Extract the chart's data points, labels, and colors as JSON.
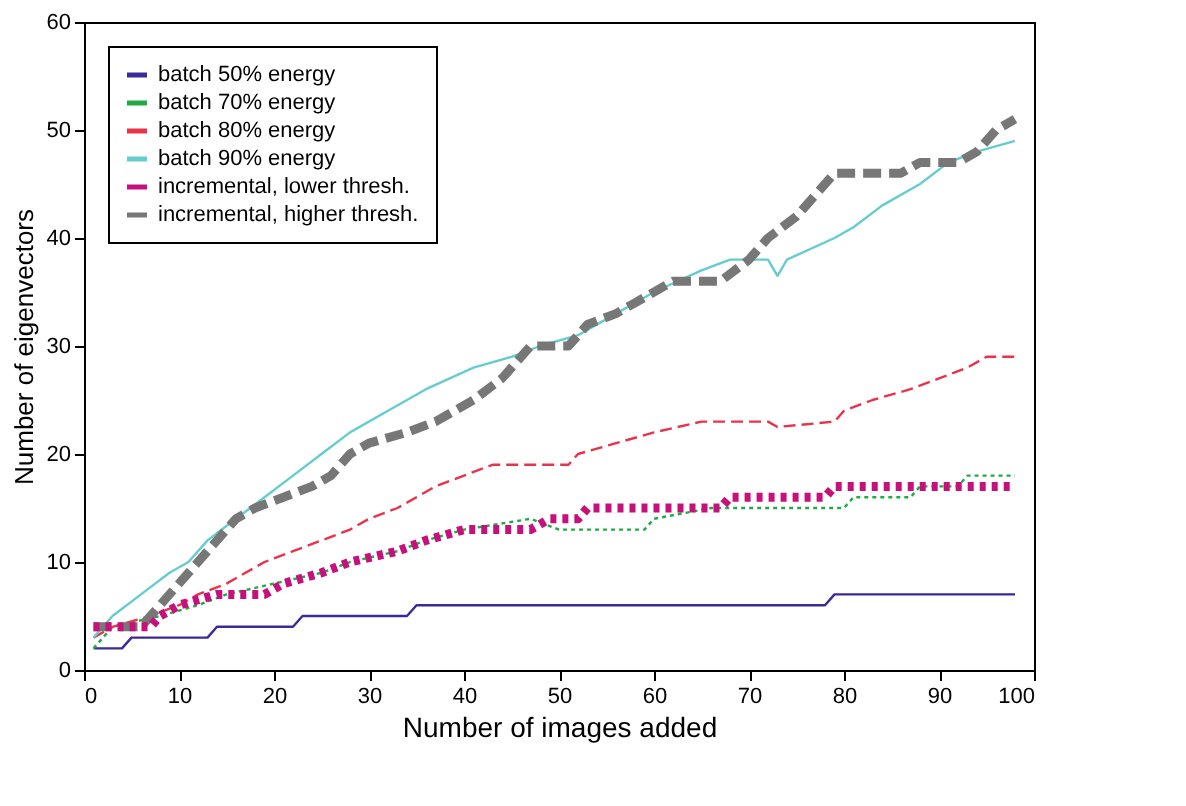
{
  "chart_data": {
    "type": "line",
    "xlabel": "Number of images added",
    "ylabel": "Number of eigenvectors",
    "xlim": [
      0,
      100
    ],
    "ylim": [
      0,
      60
    ],
    "xticks": [
      0,
      10,
      20,
      30,
      40,
      50,
      60,
      70,
      80,
      90,
      100
    ],
    "yticks": [
      0,
      10,
      20,
      30,
      40,
      50,
      60
    ],
    "grid": false,
    "legend": "top left",
    "series": [
      {
        "name": "batch 50% energy",
        "color": "#3a2a9a",
        "line_style": "solid",
        "x": [
          1,
          4,
          5,
          13,
          14,
          22,
          23,
          34,
          35,
          78,
          79,
          98
        ],
        "values": [
          2,
          2,
          3,
          3,
          4,
          4,
          5,
          5,
          6,
          6,
          7,
          7
        ]
      },
      {
        "name": "batch 70% energy",
        "color": "#22aa44",
        "line_style": "dotted",
        "x": [
          1,
          3,
          8,
          12,
          15,
          20,
          25,
          28,
          33,
          36,
          40,
          47,
          50,
          52,
          59,
          60,
          66,
          80,
          81,
          87,
          88,
          92,
          93,
          98
        ],
        "values": [
          2,
          4,
          5,
          6,
          7,
          8,
          9,
          10,
          11,
          12,
          13,
          14,
          13,
          13,
          13,
          14,
          15,
          15,
          16,
          16,
          17,
          17,
          18,
          18
        ]
      },
      {
        "name": "batch 80% energy",
        "color": "#e8334a",
        "line_style": "dashed",
        "x": [
          1,
          3,
          7,
          10,
          12,
          15,
          17,
          19,
          22,
          25,
          28,
          30,
          33,
          35,
          37,
          40,
          43,
          51,
          52,
          56,
          60,
          65,
          72,
          73,
          79,
          80,
          83,
          87,
          90,
          93,
          95,
          98
        ],
        "values": [
          3,
          4,
          5,
          6,
          7,
          8,
          9,
          10,
          11,
          12,
          13,
          14,
          15,
          16,
          17,
          18,
          19,
          19,
          20,
          21,
          22,
          23,
          23,
          22.5,
          23,
          24,
          25,
          26,
          27,
          28,
          29,
          29
        ]
      },
      {
        "name": "batch 90% energy",
        "color": "#66cccc",
        "line_style": "solid",
        "x": [
          1,
          3,
          6,
          9,
          11,
          13,
          16,
          19,
          22,
          25,
          28,
          32,
          36,
          41,
          45,
          48,
          52,
          54,
          56,
          60,
          65,
          68,
          72,
          73,
          74,
          79,
          81,
          84,
          88,
          91,
          94,
          98
        ],
        "values": [
          3,
          5,
          7,
          9,
          10,
          12,
          14,
          16,
          18,
          20,
          22,
          24,
          26,
          28,
          29,
          30,
          31,
          32,
          33,
          35,
          37,
          38,
          38,
          36.5,
          38,
          40,
          41,
          43,
          45,
          47,
          48,
          49
        ]
      },
      {
        "name": "incremental, lower thresh.",
        "color": "#c8107c",
        "line_style": "dotted",
        "x": [
          1,
          7,
          8,
          10,
          14,
          19,
          21,
          25,
          28,
          33,
          36,
          40,
          47,
          49,
          52,
          53,
          67,
          68,
          78,
          79,
          98
        ],
        "values": [
          4,
          4,
          5,
          6,
          7,
          7,
          8,
          9,
          10,
          11,
          12,
          13,
          13,
          14,
          14,
          15,
          15,
          16,
          16,
          17,
          17
        ]
      },
      {
        "name": "incremental, higher thresh.",
        "color": "#777777",
        "line_style": "dashed",
        "x": [
          1,
          6,
          7,
          9,
          11,
          14,
          16,
          18,
          21,
          24,
          26,
          28,
          30,
          34,
          37,
          41,
          44,
          47,
          51,
          53,
          56,
          58,
          62,
          67,
          70,
          72,
          75,
          77,
          79,
          86,
          88,
          92,
          94,
          96,
          98
        ],
        "values": [
          4,
          4,
          5,
          7,
          9,
          12,
          14,
          15,
          16,
          17,
          18,
          20,
          21,
          22,
          23,
          25,
          27,
          30,
          30,
          32,
          33,
          34,
          36,
          36,
          38,
          40,
          42,
          44,
          46,
          46,
          47,
          47,
          48,
          50,
          51
        ]
      }
    ]
  }
}
